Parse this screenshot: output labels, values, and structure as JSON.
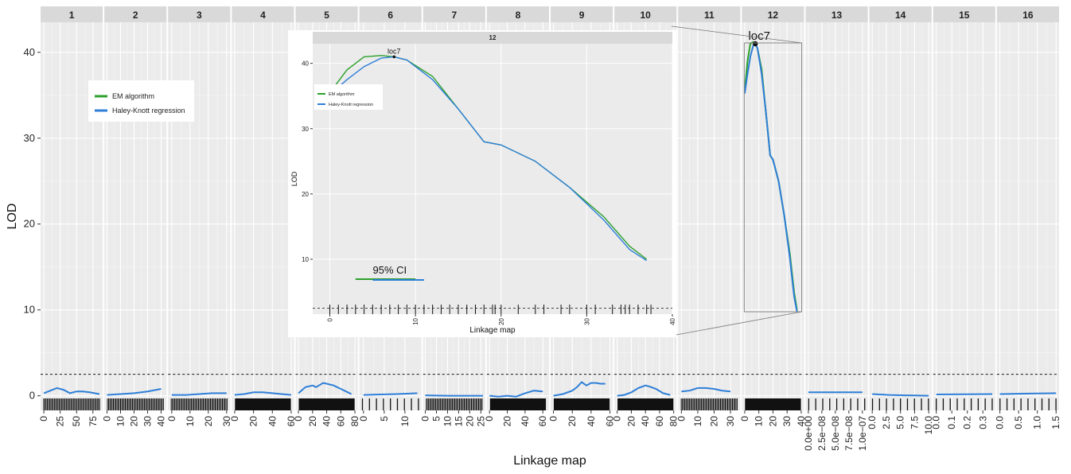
{
  "chart_data": {
    "type": "line",
    "title": "",
    "xlabel": "Linkage map",
    "ylabel": "LOD",
    "ylim": [
      -1.7,
      43.5
    ],
    "y_ticks": [
      0,
      10,
      20,
      30,
      40
    ],
    "threshold": 2.5,
    "grid": true,
    "legend_position": "upper-left",
    "colors": {
      "em": "#2ca02c",
      "hk": "#2f7fd8",
      "strip": "#d9d9d9",
      "panel": "#ebebeb"
    },
    "series_names": [
      "EM algorithm",
      "Haley-Knott regression"
    ],
    "facets": [
      {
        "label": "1",
        "xlim": [
          -5,
          90
        ],
        "ticks": [
          "0",
          "25",
          "50",
          "75"
        ],
        "tick_values": [
          0,
          25,
          50,
          75
        ],
        "markers": "dense",
        "hk": [
          [
            0,
            0.3
          ],
          [
            10,
            0.6
          ],
          [
            20,
            0.9
          ],
          [
            30,
            0.7
          ],
          [
            40,
            0.3
          ],
          [
            50,
            0.5
          ],
          [
            60,
            0.5
          ],
          [
            70,
            0.4
          ],
          [
            85,
            0.2
          ]
        ]
      },
      {
        "label": "2",
        "xlim": [
          -2,
          44
        ],
        "ticks": [
          "0",
          "10",
          "20",
          "30",
          "40"
        ],
        "tick_values": [
          0,
          10,
          20,
          30,
          40
        ],
        "markers": "dense",
        "hk": [
          [
            0,
            0.1
          ],
          [
            10,
            0.2
          ],
          [
            20,
            0.3
          ],
          [
            30,
            0.5
          ],
          [
            40,
            0.8
          ]
        ]
      },
      {
        "label": "3",
        "xlim": [
          -2,
          32
        ],
        "ticks": [
          "0",
          "10",
          "20",
          "30"
        ],
        "tick_values": [
          0,
          10,
          20,
          30
        ],
        "markers": "dense",
        "hk": [
          [
            0,
            0.1
          ],
          [
            8,
            0.1
          ],
          [
            15,
            0.2
          ],
          [
            22,
            0.3
          ],
          [
            30,
            0.3
          ]
        ]
      },
      {
        "label": "4",
        "xlim": [
          -3,
          63
        ],
        "ticks": [
          "0",
          "20",
          "40",
          "60"
        ],
        "tick_values": [
          0,
          20,
          40,
          60
        ],
        "markers": "black",
        "hk": [
          [
            0,
            0.1
          ],
          [
            10,
            0.2
          ],
          [
            20,
            0.4
          ],
          [
            30,
            0.4
          ],
          [
            40,
            0.3
          ],
          [
            50,
            0.2
          ],
          [
            60,
            0.1
          ]
        ]
      },
      {
        "label": "5",
        "xlim": [
          -4,
          84
        ],
        "ticks": [
          "0",
          "20",
          "40",
          "60",
          "80"
        ],
        "tick_values": [
          0,
          20,
          40,
          60,
          80
        ],
        "markers": "black",
        "hk": [
          [
            0,
            0.3
          ],
          [
            10,
            1.0
          ],
          [
            20,
            1.2
          ],
          [
            25,
            1.0
          ],
          [
            35,
            1.5
          ],
          [
            40,
            1.4
          ],
          [
            50,
            1.2
          ],
          [
            60,
            0.8
          ],
          [
            70,
            0.4
          ],
          [
            75,
            0.2
          ]
        ]
      },
      {
        "label": "6",
        "xlim": [
          -1,
          14
        ],
        "ticks": [
          "0",
          "5",
          "10"
        ],
        "tick_values": [
          0,
          5,
          10
        ],
        "markers": "sparse",
        "hk": [
          [
            0,
            0.1
          ],
          [
            4,
            0.15
          ],
          [
            8,
            0.2
          ],
          [
            13,
            0.3
          ]
        ]
      },
      {
        "label": "7",
        "xlim": [
          -1,
          27
        ],
        "ticks": [
          "0",
          "5",
          "10",
          "15",
          "20",
          "25"
        ],
        "tick_values": [
          0,
          5,
          10,
          15,
          20,
          25
        ],
        "markers": "dense",
        "hk": [
          [
            0,
            0.05
          ],
          [
            10,
            0.0
          ],
          [
            20,
            0.0
          ],
          [
            26,
            0.0
          ]
        ]
      },
      {
        "label": "8",
        "xlim": [
          -3,
          67
        ],
        "ticks": [
          "0",
          "20",
          "40",
          "60"
        ],
        "tick_values": [
          0,
          20,
          40,
          60
        ],
        "markers": "black",
        "hk": [
          [
            0,
            0.0
          ],
          [
            10,
            -0.1
          ],
          [
            20,
            0.0
          ],
          [
            30,
            -0.1
          ],
          [
            40,
            0.3
          ],
          [
            50,
            0.6
          ],
          [
            60,
            0.5
          ]
        ]
      },
      {
        "label": "9",
        "xlim": [
          -3,
          63
        ],
        "ticks": [
          "0",
          "20",
          "40",
          "60"
        ],
        "tick_values": [
          0,
          20,
          40,
          60
        ],
        "markers": "black",
        "hk": [
          [
            0,
            0.0
          ],
          [
            10,
            0.2
          ],
          [
            20,
            0.6
          ],
          [
            25,
            1.0
          ],
          [
            30,
            1.6
          ],
          [
            35,
            1.2
          ],
          [
            40,
            1.5
          ],
          [
            45,
            1.5
          ],
          [
            50,
            1.4
          ],
          [
            55,
            1.4
          ]
        ]
      },
      {
        "label": "10",
        "xlim": [
          -4,
          84
        ],
        "ticks": [
          "0",
          "20",
          "40",
          "60",
          "80"
        ],
        "tick_values": [
          0,
          20,
          40,
          60,
          80
        ],
        "markers": "black",
        "hk": [
          [
            0,
            0.0
          ],
          [
            10,
            0.1
          ],
          [
            20,
            0.4
          ],
          [
            30,
            0.9
          ],
          [
            40,
            1.2
          ],
          [
            45,
            1.1
          ],
          [
            55,
            0.8
          ],
          [
            65,
            0.3
          ],
          [
            75,
            0.1
          ]
        ]
      },
      {
        "label": "11",
        "xlim": [
          -2,
          36
        ],
        "ticks": [
          "0",
          "10",
          "20",
          "30"
        ],
        "tick_values": [
          0,
          10,
          20,
          30
        ],
        "markers": "dense",
        "hk": [
          [
            0,
            0.5
          ],
          [
            5,
            0.6
          ],
          [
            10,
            0.9
          ],
          [
            15,
            0.9
          ],
          [
            20,
            0.8
          ],
          [
            25,
            0.6
          ],
          [
            30,
            0.5
          ]
        ]
      },
      {
        "label": "12",
        "xlim": [
          -2,
          42
        ],
        "ticks": [
          "0",
          "10",
          "20",
          "30",
          "40"
        ],
        "tick_values": [
          0,
          10,
          20,
          30,
          40
        ],
        "markers": "black",
        "em": [
          [
            0,
            35.5
          ],
          [
            2,
            39
          ],
          [
            4,
            41
          ],
          [
            6,
            41.2
          ],
          [
            7.5,
            41
          ],
          [
            9,
            40.5
          ],
          [
            12,
            38
          ],
          [
            15,
            33
          ],
          [
            18,
            28
          ],
          [
            20,
            27.5
          ],
          [
            24,
            25
          ],
          [
            28,
            21
          ],
          [
            32,
            16.5
          ],
          [
            35,
            12
          ],
          [
            37,
            10
          ]
        ],
        "hk": [
          [
            0,
            35.2
          ],
          [
            2,
            37.5
          ],
          [
            4,
            39.5
          ],
          [
            6,
            40.8
          ],
          [
            7.5,
            41
          ],
          [
            9,
            40.5
          ],
          [
            12,
            37.5
          ],
          [
            15,
            33
          ],
          [
            18,
            28
          ],
          [
            20,
            27.5
          ],
          [
            24,
            25
          ],
          [
            28,
            21
          ],
          [
            32,
            16
          ],
          [
            35,
            11.5
          ],
          [
            37,
            9.8
          ]
        ]
      },
      {
        "label": "13",
        "xlim": [
          -5e-09,
          1.1e-07
        ],
        "ticks": [
          "0.0e+00",
          "2.5e−08",
          "5.0e−08",
          "7.5e−08",
          "1.0e−07"
        ],
        "tick_values": [
          0,
          2.5e-08,
          5e-08,
          7.5e-08,
          1e-07
        ],
        "markers": "sparse",
        "hk": [
          [
            0,
            0.4
          ],
          [
            1e-07,
            0.4
          ]
        ]
      },
      {
        "label": "14",
        "xlim": [
          -0.5,
          10.5
        ],
        "ticks": [
          "0.0",
          "2.5",
          "5.0",
          "7.5",
          "10.0"
        ],
        "tick_values": [
          0,
          2.5,
          5,
          7.5,
          10
        ],
        "markers": "sparse",
        "hk": [
          [
            0,
            0.2
          ],
          [
            3,
            0.1
          ],
          [
            6,
            0.05
          ],
          [
            10,
            0.0
          ]
        ]
      },
      {
        "label": "15",
        "xlim": [
          -0.02,
          0.38
        ],
        "ticks": [
          "0.0",
          "0.1",
          "0.2",
          "0.3"
        ],
        "tick_values": [
          0,
          0.1,
          0.2,
          0.3
        ],
        "markers": "sparse",
        "hk": [
          [
            0,
            0.15
          ],
          [
            0.36,
            0.2
          ]
        ]
      },
      {
        "label": "16",
        "xlim": [
          -0.08,
          1.58
        ],
        "ticks": [
          "0.0",
          "0.5",
          "1.0",
          "1.5"
        ],
        "tick_values": [
          0,
          0.5,
          1.0,
          1.5
        ],
        "markers": "sparse",
        "hk": [
          [
            0,
            0.2
          ],
          [
            0.75,
            0.25
          ],
          [
            1.5,
            0.3
          ]
        ]
      }
    ],
    "peak": {
      "label": "loc7",
      "x": 7.5,
      "y": 41,
      "facet": "12"
    },
    "inset": {
      "strip_label": "12",
      "xlabel": "Linkage map",
      "ylabel": "LOD",
      "xlim": [
        -2,
        40
      ],
      "ylim": [
        1.6,
        43
      ],
      "x_ticks": [
        0,
        10,
        20,
        30,
        40
      ],
      "y_ticks": [
        10,
        20,
        30,
        40
      ],
      "ci_label": "95% CI",
      "ci_em": [
        3,
        10
      ],
      "ci_hk": [
        5,
        11
      ]
    }
  }
}
